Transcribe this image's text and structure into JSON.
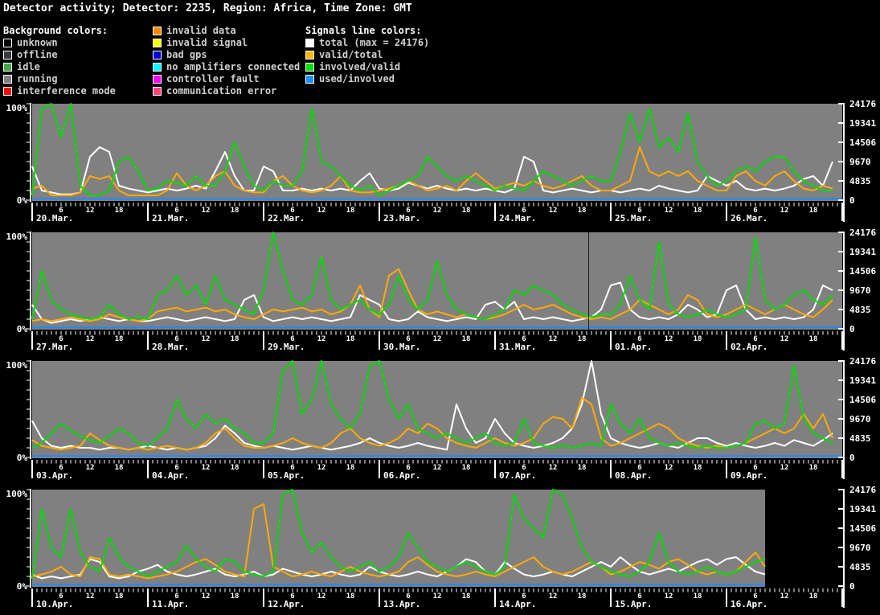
{
  "title": "Detector activity; Detector: 2235, Region: Africa, Time Zone: GMT",
  "legend": {
    "background_header": "Background colors:",
    "signals_header": "Signals line colors:",
    "background_items": [
      {
        "label": "unknown",
        "color": "#000000"
      },
      {
        "label": "offline",
        "color": "#3a3a3a"
      },
      {
        "label": "idle",
        "color": "#44aa44"
      },
      {
        "label": "running",
        "color": "#808080"
      },
      {
        "label": "interference mode",
        "color": "#ff0000"
      }
    ],
    "status_items": [
      {
        "label": "invalid data",
        "color": "#ff8800"
      },
      {
        "label": "invalid signal",
        "color": "#ffff00"
      },
      {
        "label": "bad gps",
        "color": "#0000dd"
      },
      {
        "label": "no amplifiers connected",
        "color": "#00ffff"
      },
      {
        "label": "controller fault",
        "color": "#ff00ff"
      },
      {
        "label": "communication error",
        "color": "#ff4477"
      }
    ],
    "signal_items": [
      {
        "label": "total (max = 24176)",
        "color": "#ffffff"
      },
      {
        "label": "valid/total",
        "color": "#ffb400"
      },
      {
        "label": "involved/valid",
        "color": "#00dd00"
      },
      {
        "label": "used/involved",
        "color": "#1e90ff"
      }
    ]
  },
  "colors": {
    "background": "#000000",
    "plot_background": "#808080",
    "axis": "#ffffff",
    "total_line": "#ffffff",
    "valid_total_line": "#ffaa00",
    "involved_valid_line": "#00dd00",
    "used_involved_line": "#2288ff",
    "cursor": "#1a1a1a"
  },
  "axis": {
    "left_labels": [
      "100%",
      "0%"
    ],
    "right_labels": [
      "24176",
      "19341",
      "14506",
      "9670",
      "4835",
      "0"
    ],
    "right_max": 24176,
    "hour_labels": [
      "6",
      "12",
      "18"
    ]
  },
  "chart_data": {
    "type": "line",
    "x_step_hours": 2,
    "hours_per_day": 24,
    "y_unit": "percent of max total (24176)",
    "legend_position": "top",
    "grid": false,
    "panels": [
      {
        "dates": [
          "20.Mar.",
          "21.Mar.",
          "22.Mar.",
          "23.Mar.",
          "24.Mar.",
          "25.Mar.",
          "26.Mar."
        ],
        "end_hour": 168,
        "cursor_hour": null,
        "series": {
          "total_pct": [
            35,
            10,
            8,
            6,
            6,
            8,
            45,
            55,
            50,
            15,
            12,
            10,
            8,
            10,
            12,
            10,
            12,
            15,
            12,
            30,
            50,
            25,
            10,
            10,
            35,
            30,
            10,
            10,
            12,
            10,
            12,
            10,
            12,
            10,
            20,
            28,
            12,
            10,
            12,
            18,
            15,
            12,
            15,
            12,
            10,
            12,
            10,
            12,
            10,
            8,
            12,
            45,
            40,
            10,
            8,
            10,
            12,
            10,
            8,
            10,
            10,
            8,
            10,
            12,
            10,
            15,
            12,
            10,
            8,
            10,
            25,
            20,
            15,
            20,
            12,
            10,
            12,
            10,
            12,
            15,
            22,
            25,
            15,
            40
          ],
          "valid_total_pct": [
            12,
            15,
            5,
            5,
            5,
            8,
            25,
            22,
            25,
            10,
            5,
            5,
            5,
            5,
            10,
            28,
            15,
            10,
            15,
            25,
            30,
            15,
            10,
            8,
            8,
            20,
            25,
            15,
            10,
            8,
            10,
            15,
            25,
            10,
            8,
            8,
            10,
            12,
            15,
            20,
            15,
            10,
            12,
            15,
            10,
            20,
            28,
            20,
            12,
            15,
            18,
            15,
            20,
            15,
            12,
            15,
            20,
            25,
            15,
            10,
            10,
            15,
            20,
            55,
            30,
            25,
            30,
            25,
            30,
            20,
            15,
            10,
            10,
            25,
            30,
            20,
            15,
            25,
            30,
            20,
            12,
            10,
            15,
            12
          ],
          "involved_valid_pct": [
            5,
            95,
            100,
            65,
            100,
            15,
            5,
            5,
            10,
            40,
            45,
            30,
            10,
            12,
            20,
            18,
            15,
            25,
            15,
            15,
            30,
            60,
            35,
            15,
            10,
            20,
            15,
            15,
            30,
            95,
            40,
            35,
            25,
            15,
            10,
            15,
            5,
            10,
            15,
            20,
            25,
            45,
            35,
            25,
            20,
            25,
            20,
            15,
            10,
            15,
            12,
            10,
            20,
            30,
            25,
            20,
            15,
            20,
            25,
            20,
            20,
            50,
            90,
            60,
            95,
            55,
            65,
            50,
            90,
            40,
            25,
            15,
            20,
            30,
            35,
            30,
            40,
            45,
            45,
            30,
            20,
            15,
            10,
            10
          ],
          "used_involved_pct_flat": 1.5
        }
      },
      {
        "dates": [
          "27.Mar.",
          "28.Mar.",
          "29.Mar.",
          "30.Mar.",
          "31.Mar.",
          "01.Apr.",
          "02.Apr."
        ],
        "end_hour": 168,
        "cursor_hour": 115.3,
        "series": {
          "total_pct": [
            25,
            10,
            6,
            8,
            10,
            8,
            10,
            12,
            10,
            8,
            10,
            8,
            8,
            10,
            12,
            10,
            8,
            10,
            12,
            10,
            8,
            10,
            30,
            35,
            12,
            8,
            10,
            12,
            10,
            12,
            10,
            8,
            10,
            12,
            35,
            30,
            25,
            10,
            8,
            10,
            18,
            12,
            10,
            8,
            10,
            12,
            10,
            25,
            28,
            20,
            28,
            10,
            12,
            10,
            12,
            10,
            8,
            10,
            12,
            20,
            45,
            48,
            20,
            12,
            10,
            12,
            10,
            15,
            25,
            20,
            12,
            15,
            40,
            45,
            20,
            10,
            12,
            10,
            12,
            10,
            12,
            20,
            45,
            40
          ],
          "valid_total_pct": [
            8,
            10,
            8,
            10,
            12,
            10,
            8,
            10,
            15,
            12,
            10,
            8,
            10,
            18,
            20,
            22,
            18,
            20,
            22,
            18,
            20,
            15,
            12,
            10,
            15,
            20,
            18,
            20,
            22,
            18,
            20,
            15,
            18,
            25,
            45,
            20,
            12,
            55,
            62,
            40,
            20,
            15,
            18,
            15,
            12,
            15,
            12,
            10,
            12,
            15,
            20,
            25,
            20,
            22,
            25,
            20,
            15,
            12,
            10,
            12,
            10,
            15,
            20,
            30,
            25,
            20,
            15,
            20,
            35,
            30,
            15,
            12,
            15,
            20,
            25,
            20,
            15,
            20,
            25,
            20,
            15,
            12,
            20,
            30
          ],
          "involved_valid_pct": [
            10,
            60,
            30,
            20,
            15,
            12,
            10,
            12,
            25,
            15,
            10,
            12,
            10,
            35,
            40,
            55,
            35,
            45,
            25,
            55,
            30,
            25,
            20,
            15,
            40,
            100,
            60,
            30,
            25,
            35,
            75,
            30,
            20,
            25,
            30,
            20,
            15,
            25,
            55,
            30,
            20,
            30,
            70,
            35,
            20,
            15,
            12,
            10,
            15,
            20,
            40,
            35,
            45,
            40,
            35,
            25,
            20,
            15,
            12,
            15,
            15,
            25,
            55,
            30,
            20,
            90,
            25,
            15,
            12,
            15,
            20,
            15,
            12,
            15,
            20,
            95,
            30,
            20,
            25,
            35,
            40,
            30,
            25,
            35
          ],
          "used_involved_pct_flat": 1.5
        }
      },
      {
        "dates": [
          "03.Apr.",
          "04.Apr.",
          "05.Apr.",
          "06.Apr.",
          "07.Apr.",
          "08.Apr.",
          "09.Apr."
        ],
        "end_hour": 168,
        "cursor_hour": null,
        "series": {
          "total_pct": [
            38,
            20,
            12,
            10,
            12,
            10,
            10,
            8,
            10,
            10,
            8,
            10,
            12,
            10,
            8,
            10,
            8,
            10,
            12,
            20,
            33,
            25,
            15,
            12,
            10,
            12,
            10,
            8,
            10,
            12,
            10,
            8,
            10,
            12,
            15,
            20,
            15,
            12,
            10,
            12,
            15,
            12,
            10,
            8,
            55,
            30,
            15,
            20,
            40,
            25,
            15,
            12,
            10,
            12,
            15,
            20,
            30,
            55,
            100,
            45,
            20,
            15,
            12,
            10,
            12,
            15,
            12,
            10,
            15,
            20,
            20,
            15,
            12,
            15,
            12,
            10,
            12,
            15,
            12,
            18,
            15,
            12,
            18,
            25
          ],
          "valid_total_pct": [
            18,
            12,
            10,
            8,
            10,
            12,
            25,
            18,
            12,
            10,
            8,
            10,
            8,
            10,
            12,
            10,
            8,
            10,
            15,
            25,
            30,
            20,
            12,
            10,
            10,
            12,
            15,
            20,
            15,
            12,
            10,
            15,
            25,
            30,
            20,
            15,
            12,
            15,
            20,
            30,
            25,
            35,
            30,
            20,
            15,
            12,
            10,
            15,
            20,
            15,
            12,
            15,
            20,
            35,
            42,
            40,
            30,
            62,
            55,
            20,
            12,
            15,
            20,
            25,
            30,
            35,
            30,
            20,
            15,
            12,
            10,
            12,
            10,
            12,
            15,
            20,
            25,
            30,
            25,
            30,
            45,
            30,
            45,
            20
          ],
          "involved_valid_pct": [
            10,
            15,
            25,
            35,
            28,
            22,
            18,
            15,
            22,
            30,
            25,
            15,
            12,
            20,
            30,
            60,
            40,
            30,
            45,
            35,
            40,
            30,
            25,
            15,
            15,
            25,
            90,
            100,
            45,
            60,
            100,
            55,
            40,
            30,
            45,
            95,
            100,
            60,
            40,
            55,
            30,
            25,
            20,
            25,
            20,
            15,
            20,
            25,
            15,
            12,
            15,
            40,
            15,
            12,
            10,
            12,
            10,
            12,
            15,
            12,
            55,
            35,
            25,
            40,
            20,
            15,
            12,
            15,
            12,
            10,
            12,
            10,
            10,
            12,
            15,
            35,
            38,
            30,
            35,
            95,
            40,
            25,
            20,
            15
          ],
          "used_involved_pct_flat": 1.5
        }
      },
      {
        "dates": [
          "10.Apr.",
          "11.Apr.",
          "12.Apr.",
          "13.Apr.",
          "14.Apr.",
          "15.Apr.",
          "16.Apr."
        ],
        "end_hour": 152,
        "cursor_hour": null,
        "series": {
          "total_pct": [
            12,
            8,
            10,
            8,
            10,
            12,
            28,
            25,
            10,
            8,
            10,
            15,
            18,
            22,
            15,
            12,
            10,
            12,
            15,
            18,
            12,
            10,
            12,
            15,
            10,
            12,
            18,
            15,
            12,
            10,
            12,
            15,
            12,
            10,
            12,
            20,
            15,
            12,
            10,
            12,
            15,
            12,
            10,
            15,
            20,
            28,
            25,
            15,
            12,
            25,
            18,
            12,
            10,
            12,
            15,
            12,
            10,
            15,
            20,
            25,
            20,
            30,
            22,
            15,
            12,
            15,
            18,
            15,
            20,
            25,
            28,
            22,
            28,
            30,
            22,
            15,
            12
          ],
          "valid_total_pct": [
            10,
            12,
            15,
            20,
            12,
            10,
            30,
            28,
            12,
            10,
            12,
            10,
            8,
            10,
            12,
            15,
            20,
            25,
            28,
            22,
            15,
            12,
            10,
            80,
            85,
            20,
            15,
            10,
            12,
            15,
            12,
            10,
            15,
            20,
            15,
            12,
            10,
            12,
            15,
            25,
            30,
            22,
            15,
            12,
            10,
            12,
            15,
            12,
            10,
            15,
            20,
            25,
            30,
            20,
            15,
            12,
            15,
            20,
            25,
            20,
            12,
            15,
            20,
            25,
            22,
            18,
            25,
            28,
            22,
            15,
            12,
            15,
            12,
            15,
            25,
            35,
            20
          ],
          "involved_valid_pct": [
            8,
            80,
            40,
            30,
            80,
            35,
            20,
            15,
            50,
            30,
            20,
            15,
            10,
            15,
            20,
            25,
            42,
            28,
            20,
            15,
            28,
            25,
            15,
            12,
            10,
            15,
            95,
            100,
            55,
            35,
            45,
            30,
            20,
            15,
            20,
            25,
            15,
            20,
            30,
            55,
            40,
            25,
            20,
            15,
            20,
            25,
            20,
            15,
            12,
            20,
            95,
            70,
            60,
            50,
            100,
            95,
            70,
            40,
            25,
            20,
            15,
            12,
            10,
            15,
            25,
            55,
            25,
            15,
            12,
            15,
            20,
            15,
            12,
            15,
            20,
            25,
            28
          ],
          "used_involved_pct_flat": 1.5
        }
      }
    ]
  }
}
